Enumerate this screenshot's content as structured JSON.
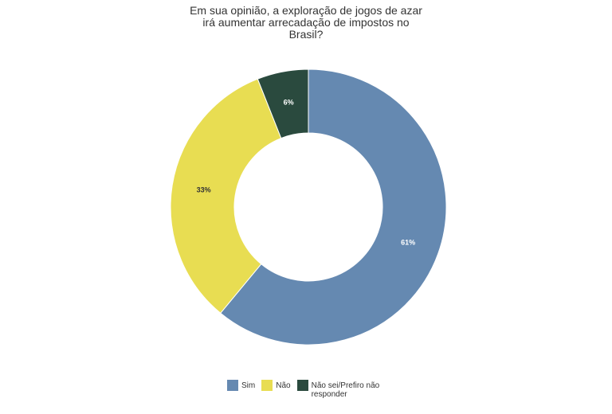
{
  "chart_data": {
    "type": "donut",
    "title": "Em sua opinião, a exploração de jogos de azar irá aumentar arrecadação de impostos no Brasil?",
    "categories": [
      "Sim",
      "Não",
      "Não sei/Prefiro não responder"
    ],
    "values": [
      61,
      33,
      6
    ],
    "value_labels": [
      "61%",
      "33%",
      "6%"
    ],
    "colors": [
      "#6589b1",
      "#e8dd52",
      "#2a4a3e"
    ],
    "legend": "bottom"
  }
}
